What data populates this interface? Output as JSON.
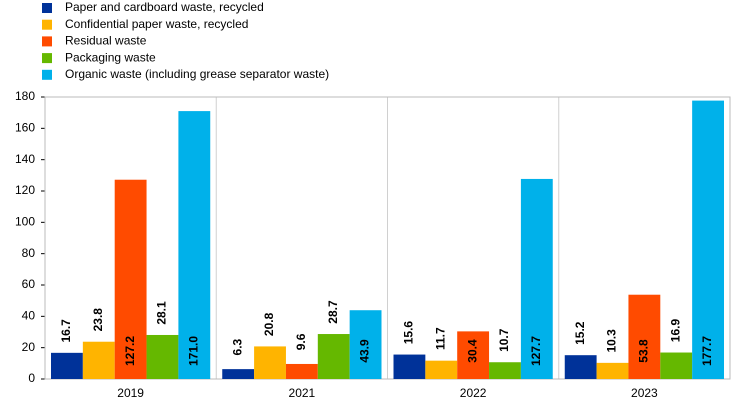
{
  "chart_data": {
    "type": "bar",
    "categories": [
      "2019",
      "2021",
      "2022",
      "2023"
    ],
    "series": [
      {
        "name": "Paper and cardboard waste, recycled",
        "color": "#003299",
        "values": [
          16.7,
          6.3,
          15.6,
          15.2
        ],
        "value_labels": [
          "16.7",
          "6.3",
          "15.6",
          "15.2"
        ]
      },
      {
        "name": "Confidential paper waste, recycled",
        "color": "#ffb400",
        "values": [
          23.8,
          20.8,
          11.7,
          10.3
        ],
        "value_labels": [
          "23.8",
          "20.8",
          "11.7",
          "10.3"
        ]
      },
      {
        "name": "Residual waste",
        "color": "#ff4b00",
        "values": [
          127.2,
          9.6,
          30.4,
          53.8
        ],
        "value_labels": [
          "127.2",
          "9.6",
          "30.4",
          "53.8"
        ]
      },
      {
        "name": "Packaging waste",
        "color": "#65b800",
        "values": [
          28.1,
          28.7,
          10.7,
          16.9
        ],
        "value_labels": [
          "28.1",
          "28.7",
          "10.7",
          "16.9"
        ]
      },
      {
        "name": "Organic waste (including grease separator waste)",
        "color": "#00b1ea",
        "values": [
          171.0,
          43.9,
          127.7,
          177.7
        ],
        "value_labels": [
          "171.0",
          "43.9",
          "127.7",
          "177.7"
        ]
      }
    ],
    "ylim": [
      0,
      180
    ],
    "yticks": [
      0,
      20,
      40,
      60,
      80,
      100,
      120,
      140,
      160,
      180
    ],
    "grid": false,
    "legend": "top-left"
  }
}
